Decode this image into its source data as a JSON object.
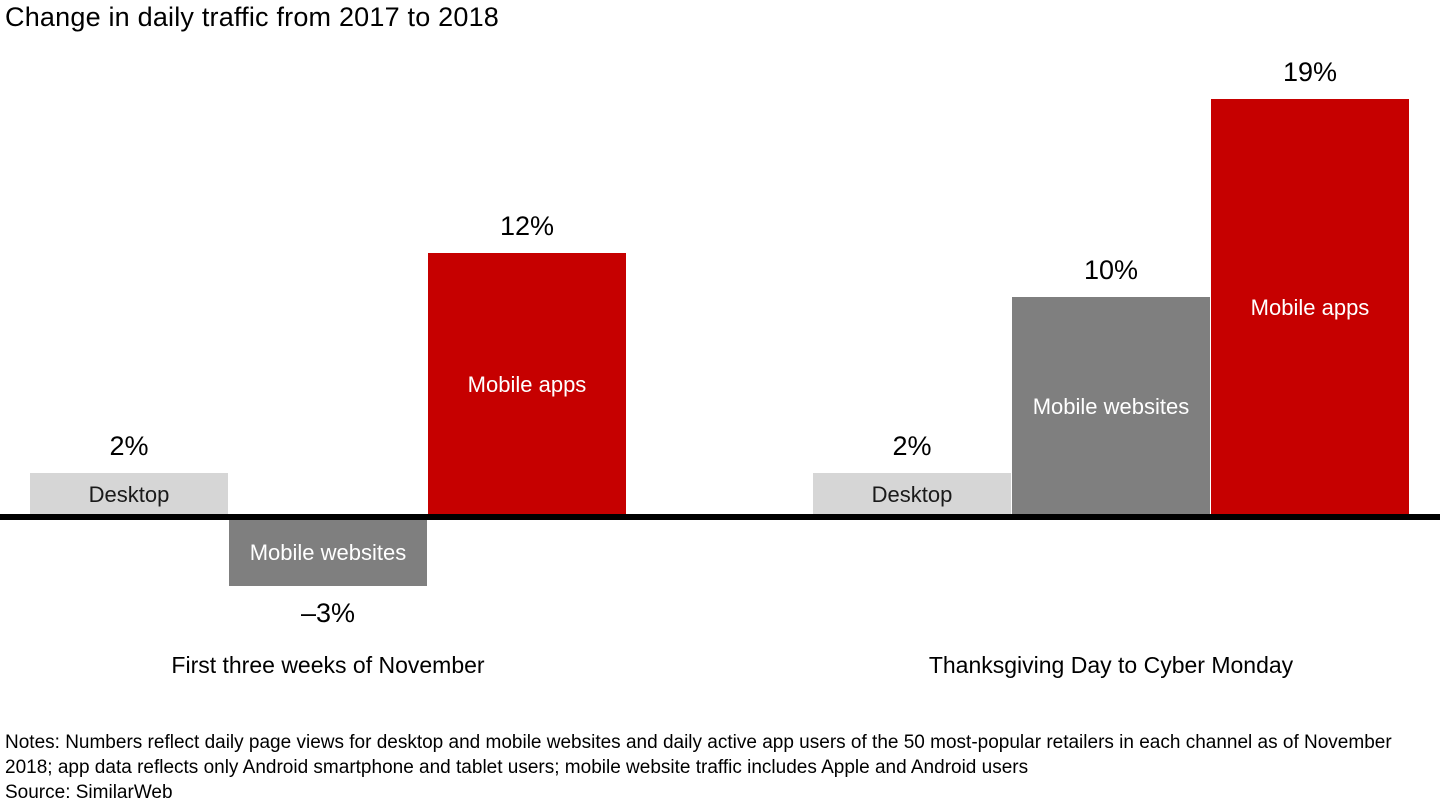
{
  "title": "Change in daily traffic from 2017 to 2018",
  "chart_data": {
    "type": "bar",
    "title": "Change in daily traffic from 2017 to 2018",
    "categories": [
      "First three weeks of November",
      "Thanksgiving Day to Cyber Monday"
    ],
    "series": [
      {
        "name": "Desktop",
        "values": [
          2,
          2
        ],
        "color": "#d6d6d6",
        "label_color": "#1a1a1a"
      },
      {
        "name": "Mobile websites",
        "values": [
          -3,
          10
        ],
        "color": "#7f7f7f",
        "label_color": "#ffffff"
      },
      {
        "name": "Mobile apps",
        "values": [
          12,
          19
        ],
        "color": "#c60000",
        "label_color": "#ffffff"
      }
    ],
    "value_labels": [
      [
        "2%",
        "–3%",
        "12%"
      ],
      [
        "2%",
        "10%",
        "19%"
      ]
    ],
    "ylim": [
      -5,
      21
    ],
    "grid": false,
    "legend": "labels-inside-bars",
    "baseline_color": "#000000"
  },
  "notes": {
    "text": "Notes: Numbers reflect daily page views for desktop and mobile websites and daily active app users of the 50 most-popular retailers in each channel as of November 2018; app data reflects only Android smartphone and tablet users; mobile website traffic includes Apple and Android users",
    "source": "Source: SimilarWeb"
  }
}
